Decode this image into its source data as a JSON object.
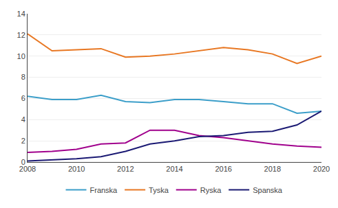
{
  "chart_data": {
    "type": "line",
    "x": [
      2008,
      2009,
      2010,
      2011,
      2012,
      2013,
      2014,
      2015,
      2016,
      2017,
      2018,
      2019,
      2020
    ],
    "series": [
      {
        "name": "Franska",
        "color": "#3B9EC9",
        "values": [
          6.2,
          5.9,
          5.9,
          6.3,
          5.7,
          5.6,
          5.9,
          5.9,
          5.7,
          5.5,
          5.5,
          4.6,
          4.8
        ]
      },
      {
        "name": "Tyska",
        "color": "#E87722",
        "values": [
          12.1,
          10.5,
          10.6,
          10.7,
          9.9,
          10.0,
          10.2,
          10.5,
          10.8,
          10.6,
          10.2,
          9.3,
          10.0
        ]
      },
      {
        "name": "Ryska",
        "color": "#A0008C",
        "values": [
          0.9,
          1.0,
          1.2,
          1.7,
          1.8,
          3.0,
          3.0,
          2.5,
          2.3,
          2.0,
          1.7,
          1.5,
          1.4
        ]
      },
      {
        "name": "Spanska",
        "color": "#1A1973",
        "values": [
          0.1,
          0.2,
          0.3,
          0.5,
          1.0,
          1.7,
          2.0,
          2.4,
          2.5,
          2.8,
          2.9,
          3.5,
          4.8
        ]
      }
    ],
    "xlim": [
      2008,
      2020
    ],
    "xticks": [
      2008,
      2010,
      2012,
      2014,
      2016,
      2018,
      2020
    ],
    "ylim": [
      0,
      14
    ],
    "yticks": [
      0,
      2,
      4,
      6,
      8,
      10,
      12,
      14
    ],
    "grid": true,
    "legend": "bottom"
  }
}
